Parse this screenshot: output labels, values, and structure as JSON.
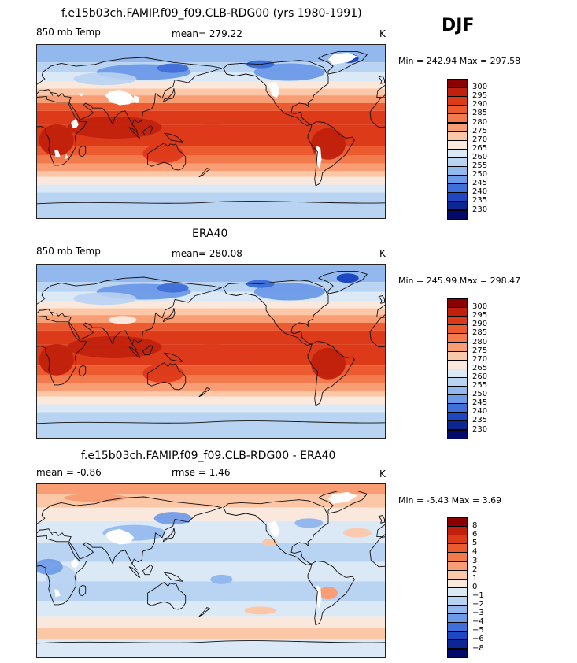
{
  "season_label": "DJF",
  "panels": [
    {
      "title": "f.e15b03ch.FAMIP.f09_f09.CLB-RDG00 (yrs 1980-1991)",
      "left_label": "850 mb Temp",
      "stat_label": "mean= 279.22",
      "units": "K",
      "minmax": "Min = 242.94 Max = 297.58",
      "colorbar_levels": [
        "300",
        "295",
        "290",
        "285",
        "280",
        "275",
        "270",
        "265",
        "260",
        "255",
        "250",
        "245",
        "240",
        "235",
        "230"
      ],
      "colorbar_colors": [
        "#8b0000",
        "#c0200c",
        "#dd3a1a",
        "#ec5a30",
        "#f27a4c",
        "#f89d74",
        "#fcc7a7",
        "#fbe8dd",
        "#dbe9f7",
        "#b9d3f2",
        "#92b8ee",
        "#6c99e8",
        "#3f6fd8",
        "#1d48c2",
        "#0c2694",
        "#040a6a"
      ],
      "map_kind": "model"
    },
    {
      "title": "ERA40",
      "left_label": "850 mb Temp",
      "stat_label": "mean= 280.08",
      "units": "K",
      "minmax": "Min = 245.99 Max = 298.47",
      "colorbar_levels": [
        "300",
        "295",
        "290",
        "285",
        "280",
        "275",
        "270",
        "265",
        "260",
        "255",
        "250",
        "245",
        "240",
        "235",
        "230"
      ],
      "colorbar_colors": [
        "#8b0000",
        "#c0200c",
        "#dd3a1a",
        "#ec5a30",
        "#f27a4c",
        "#f89d74",
        "#fcc7a7",
        "#fbe8dd",
        "#dbe9f7",
        "#b9d3f2",
        "#92b8ee",
        "#6c99e8",
        "#3f6fd8",
        "#1d48c2",
        "#0c2694",
        "#040a6a"
      ],
      "map_kind": "obs"
    },
    {
      "title": "f.e15b03ch.FAMIP.f09_f09.CLB-RDG00 - ERA40",
      "left_label": "mean =   -0.86",
      "stat_label": "rmse =    1.46",
      "units": "K",
      "minmax": "Min =   -5.43 Max =    3.69",
      "colorbar_levels": [
        "8",
        "6",
        "5",
        "4",
        "3",
        "2",
        "1",
        "0",
        "−1",
        "−2",
        "−3",
        "−4",
        "−5",
        "−6",
        "−8"
      ],
      "colorbar_colors": [
        "#8b0000",
        "#c0200c",
        "#dd3a1a",
        "#ec5a30",
        "#f27a4c",
        "#f89d74",
        "#fcc7a7",
        "#fbe8dd",
        "#dbe9f7",
        "#b9d3f2",
        "#92b8ee",
        "#6c99e8",
        "#3f6fd8",
        "#1d48c2",
        "#0c2694",
        "#040a6a"
      ],
      "map_kind": "diff"
    }
  ]
}
